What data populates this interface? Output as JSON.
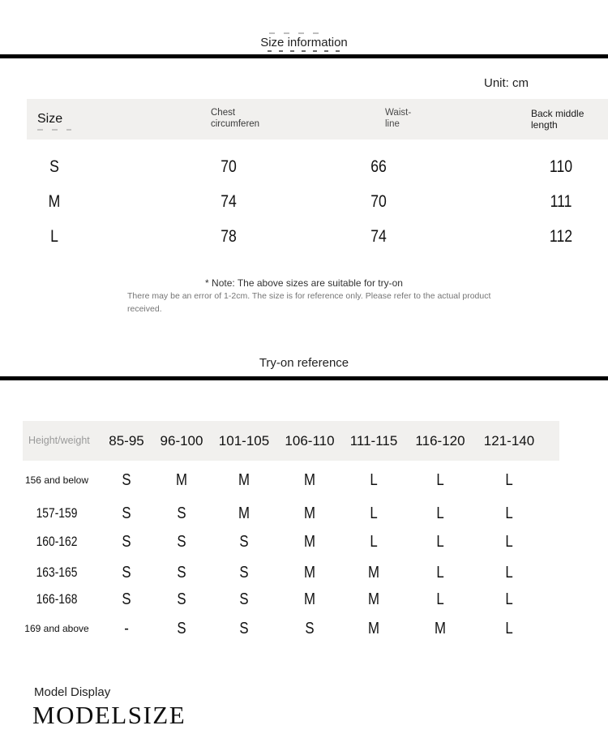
{
  "header": {
    "title": "Size information",
    "unit_label": "Unit: cm"
  },
  "size_table": {
    "col_size": "Size",
    "col_chest_l1": "Chest",
    "col_chest_l2": "circumferen",
    "col_waist_l1": "Waist-",
    "col_waist_l2": "line",
    "col_back_l1": "Back middle",
    "col_back_l2": "length",
    "rows": [
      {
        "size": "S",
        "chest": "70",
        "waist": "66",
        "back": "110"
      },
      {
        "size": "M",
        "chest": "74",
        "waist": "70",
        "back": "111"
      },
      {
        "size": "L",
        "chest": "78",
        "waist": "74",
        "back": "112"
      }
    ]
  },
  "note": {
    "line1": "* Note: The above sizes are suitable for try-on",
    "line2": "There may be an error of 1-2cm. The size is for reference only. Please refer to the actual product received."
  },
  "tryon": {
    "title": "Try-on reference",
    "corner_label": "Height/weight",
    "weight_columns": [
      "85-95",
      "96-100",
      "101-105",
      "106-110",
      "111-115",
      "116-120",
      "121-140"
    ],
    "rows": [
      {
        "height": "156 and below",
        "values": [
          "S",
          "M",
          "M",
          "M",
          "L",
          "L",
          "L"
        ]
      },
      {
        "height": "157-159",
        "values": [
          "S",
          "S",
          "M",
          "M",
          "L",
          "L",
          "L"
        ]
      },
      {
        "height": "160-162",
        "values": [
          "S",
          "S",
          "S",
          "M",
          "L",
          "L",
          "L"
        ]
      },
      {
        "height": "163-165",
        "values": [
          "S",
          "S",
          "S",
          "M",
          "M",
          "L",
          "L"
        ]
      },
      {
        "height": "166-168",
        "values": [
          "S",
          "S",
          "S",
          "M",
          "M",
          "L",
          "L"
        ]
      },
      {
        "height": "169 and above",
        "values": [
          "-",
          "S",
          "S",
          "S",
          "M",
          "M",
          "L"
        ]
      }
    ]
  },
  "footer": {
    "model_display_label": "Model Display",
    "model_size_label": "MODELSIZE"
  },
  "colors": {
    "header_bg": "#f1f0ee",
    "divider": "#000000"
  }
}
